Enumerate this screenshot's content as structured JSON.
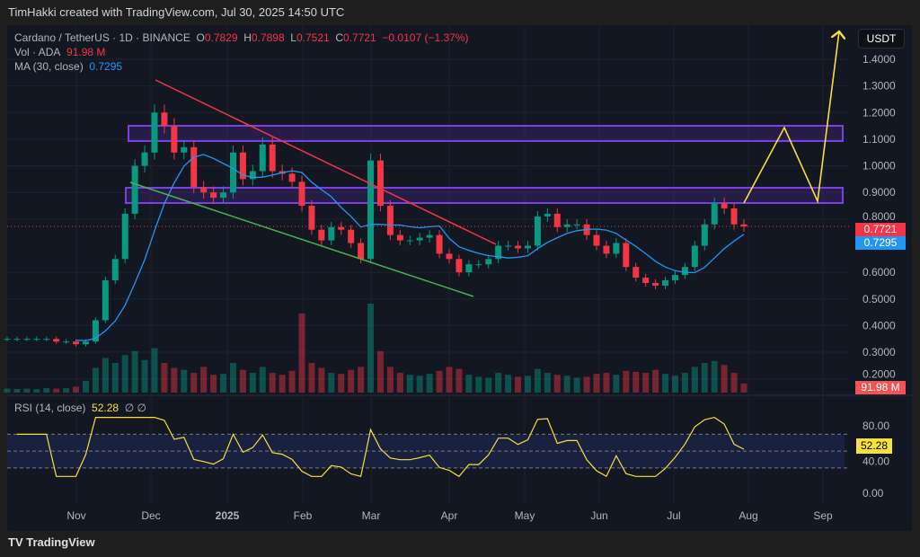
{
  "header": {
    "credit": "TimHakki created with TradingView.com, Jul 30, 2025 14:50 UTC"
  },
  "legend": {
    "symbol": "Cardano / TetherUS · 1D · BINANCE",
    "o_label": "O",
    "o": "0.7829",
    "h_label": "H",
    "h": "0.7898",
    "l_label": "L",
    "l": "0.7521",
    "c_label": "C",
    "c": "0.7721",
    "change": "−0.0107 (−1.37%)",
    "vol_label": "Vol · ADA",
    "vol": "91.98 M",
    "ma_label": "MA (30, close)",
    "ma": "0.7295",
    "rsi_label": "RSI (14, close)",
    "rsi": "52.28",
    "rsi_extra": "∅ ∅"
  },
  "currency": "USDT",
  "brand": "TradingView",
  "colors": {
    "up": "#089981",
    "down": "#f23645",
    "ma": "#2196f3",
    "rsi": "#f7e03a",
    "resistance_box": "#7b3fe4",
    "downtrend_top": "#f23645",
    "downtrend_bottom": "#4caf50",
    "projection": "#f7e03a"
  },
  "chart_data": [
    {
      "type": "candlestick",
      "title": "Cardano / TetherUS · 1D · BINANCE",
      "start_date": "2024-10-04",
      "interval_days": 4,
      "closes": [
        0.35,
        0.35,
        0.35,
        0.35,
        0.35,
        0.34,
        0.34,
        0.33,
        0.34,
        0.42,
        0.57,
        0.65,
        0.82,
        1.0,
        1.05,
        1.2,
        1.15,
        1.05,
        1.07,
        0.92,
        0.9,
        0.88,
        0.9,
        1.05,
        0.95,
        0.98,
        1.08,
        0.98,
        0.97,
        0.94,
        0.85,
        0.76,
        0.72,
        0.77,
        0.76,
        0.71,
        0.65,
        1.02,
        0.85,
        0.74,
        0.72,
        0.72,
        0.73,
        0.74,
        0.67,
        0.65,
        0.6,
        0.63,
        0.63,
        0.65,
        0.7,
        0.7,
        0.69,
        0.7,
        0.81,
        0.82,
        0.77,
        0.78,
        0.78,
        0.74,
        0.7,
        0.67,
        0.71,
        0.62,
        0.58,
        0.56,
        0.55,
        0.57,
        0.59,
        0.62,
        0.7,
        0.78,
        0.86,
        0.84,
        0.78,
        0.7721
      ],
      "volumes_m": [
        40,
        35,
        40,
        35,
        45,
        40,
        45,
        60,
        120,
        250,
        350,
        300,
        380,
        420,
        330,
        450,
        300,
        250,
        230,
        200,
        260,
        180,
        190,
        300,
        230,
        200,
        260,
        200,
        180,
        220,
        800,
        300,
        250,
        200,
        190,
        230,
        260,
        900,
        420,
        260,
        200,
        180,
        170,
        190,
        220,
        260,
        240,
        180,
        160,
        150,
        200,
        180,
        160,
        170,
        240,
        200,
        180,
        170,
        150,
        160,
        190,
        200,
        180,
        220,
        210,
        200,
        230,
        190,
        170,
        200,
        260,
        300,
        320,
        280,
        200,
        91.98
      ],
      "ma_period": 30,
      "ma_last": 0.7295,
      "last_price": 0.7721,
      "y_ticks": [
        "1.4000",
        "1.3000",
        "1.2000",
        "1.1000",
        "1.0000",
        "0.9000",
        "0.8000",
        "0.6000",
        "0.5000",
        "0.4000",
        "0.3000",
        "0.2000"
      ],
      "ylim": [
        0.2,
        1.45
      ],
      "x_ticks": [
        "Nov",
        "Dec",
        "2025",
        "Feb",
        "Mar",
        "Apr",
        "May",
        "Jun",
        "Jul",
        "Aug",
        "Sep"
      ],
      "annotations": {
        "resistance_zones": [
          [
            1.1,
            1.15
          ],
          [
            0.86,
            0.91
          ]
        ],
        "downtrend_top": [
          [
            1.32,
            "2024-12-03"
          ],
          [
            0.77,
            "2025-04-19"
          ]
        ],
        "downtrend_bottom": [
          [
            0.94,
            "2024-11-23"
          ],
          [
            0.51,
            "2025-04-14"
          ]
        ],
        "projection": [
          0.86,
          1.14,
          0.87,
          1.48
        ]
      }
    },
    {
      "type": "line",
      "title": "RSI (14, close)",
      "last": 52.28,
      "y_ticks": [
        "80.00",
        "40.00",
        "0.00"
      ],
      "ylim": [
        0,
        100
      ],
      "bands": [
        30,
        50,
        70
      ]
    }
  ]
}
